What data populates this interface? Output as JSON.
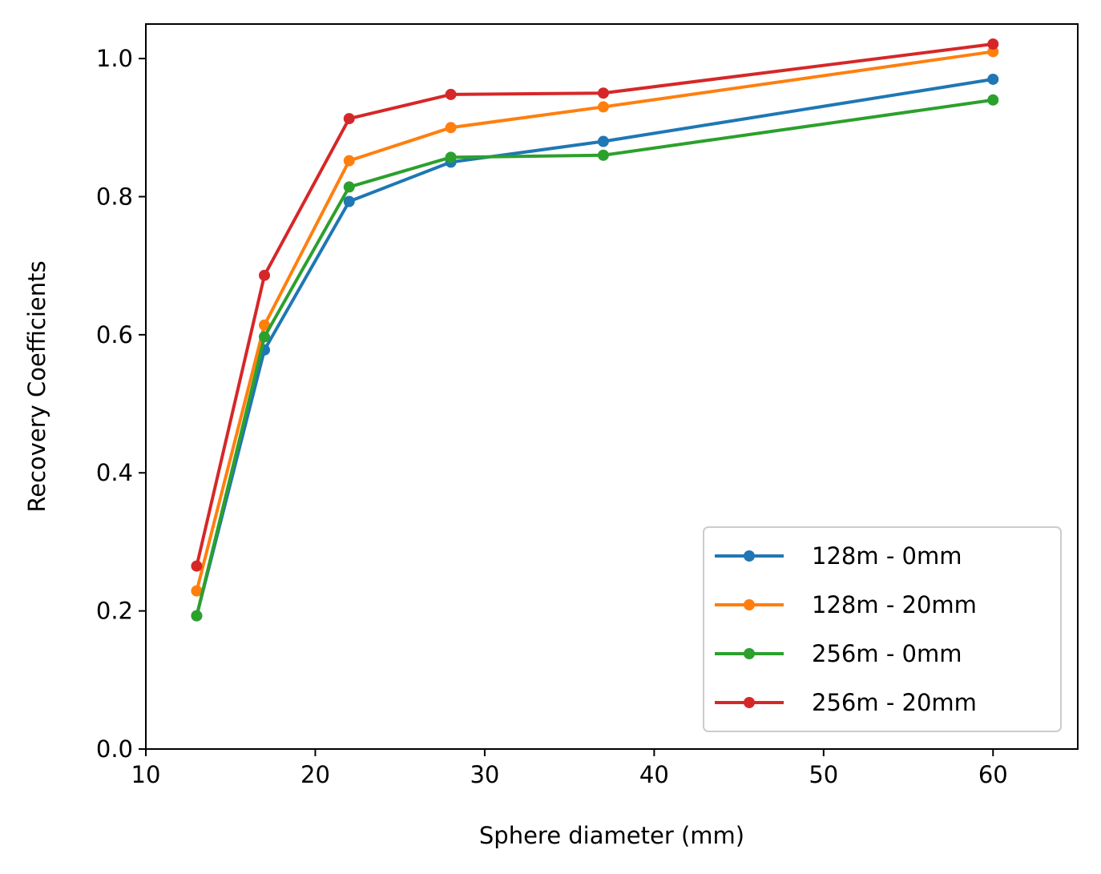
{
  "chart_data": {
    "type": "line",
    "title": "",
    "xlabel": "Sphere diameter (mm)",
    "ylabel": "Recovery Coefficients",
    "xlim": [
      10,
      65
    ],
    "ylim": [
      0.0,
      1.05
    ],
    "xticks": [
      10,
      20,
      30,
      40,
      50,
      60
    ],
    "xtick_labels": [
      "10",
      "20",
      "30",
      "40",
      "50",
      "60"
    ],
    "yticks": [
      0.0,
      0.2,
      0.4,
      0.6,
      0.8,
      1.0
    ],
    "ytick_labels": [
      "0.0",
      "0.2",
      "0.4",
      "0.6",
      "0.8",
      "1.0"
    ],
    "grid": false,
    "legend_position": "bottom-right",
    "x": [
      13,
      17,
      22,
      28,
      37,
      60
    ],
    "series": [
      {
        "name": "128m - 0mm",
        "color": "#1f77b4",
        "values": [
          0.193,
          0.578,
          0.793,
          0.85,
          0.88,
          0.97
        ]
      },
      {
        "name": "128m - 20mm",
        "color": "#ff7f0e",
        "values": [
          0.229,
          0.614,
          0.852,
          0.9,
          0.93,
          1.01
        ]
      },
      {
        "name": "256m - 0mm",
        "color": "#2ca02c",
        "values": [
          0.193,
          0.597,
          0.814,
          0.857,
          0.86,
          0.94
        ]
      },
      {
        "name": "256m - 20mm",
        "color": "#d62728",
        "values": [
          0.265,
          0.686,
          0.913,
          0.948,
          0.95,
          1.021
        ]
      }
    ]
  }
}
